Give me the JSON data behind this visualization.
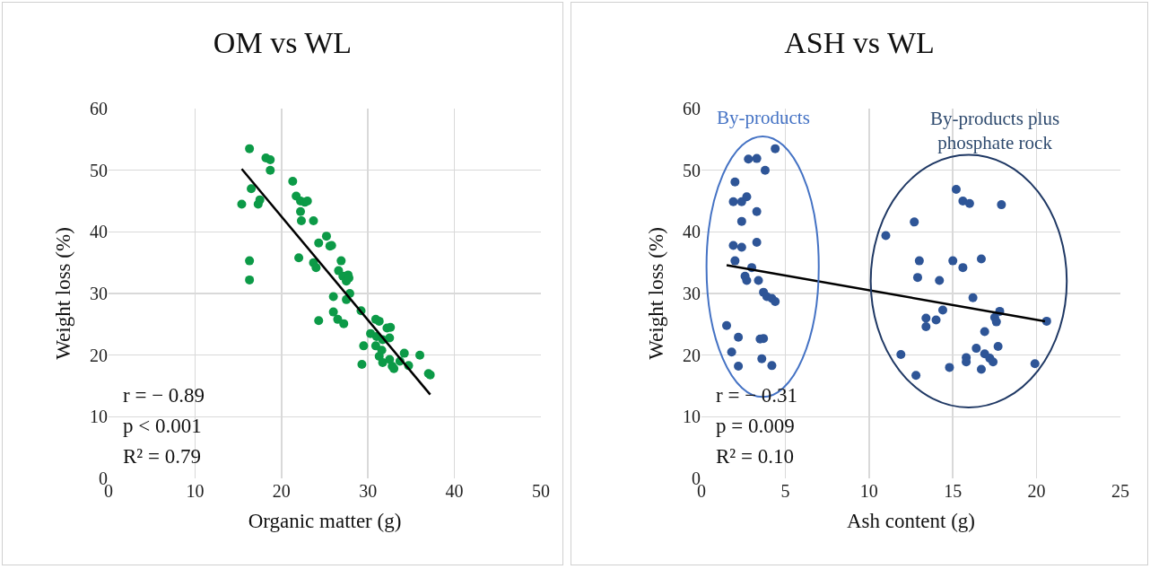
{
  "chart_data": [
    {
      "type": "scatter",
      "title": "OM vs WL",
      "xlabel": "Organic matter (g)",
      "ylabel": "Weight loss (%)",
      "xlim": [
        0,
        50
      ],
      "xticks": [
        0,
        10,
        20,
        30,
        40,
        50
      ],
      "ylim": [
        0,
        60
      ],
      "yticks": [
        0,
        10,
        20,
        30,
        40,
        50,
        60
      ],
      "grid": true,
      "marker": "circle",
      "annotations": [
        "r = − 0.89",
        "p < 0.001",
        "R² = 0.79"
      ],
      "series": [
        {
          "color": "#0c9a47",
          "x": [
            15.4,
            16.3,
            16.5,
            16.3,
            16.3,
            17.3,
            17.5,
            18.2,
            18.7,
            18.7,
            21.3,
            21.7,
            22.2,
            22.7,
            23,
            22.2,
            22.3,
            23.7,
            22,
            24.3,
            25.2,
            25.6,
            25.8,
            23.7,
            24,
            24.3,
            26,
            26.9,
            26.6,
            27.1,
            27.5,
            27.7,
            27.8,
            27.9,
            27.5,
            26,
            26.5,
            27.2,
            29.2,
            30.9,
            31.3,
            32.6,
            32.2,
            31,
            31.7,
            32.5,
            29.5,
            30.3,
            29.3,
            31.3,
            31.7,
            32.5,
            32.8,
            33,
            33.7,
            34.7,
            36,
            34.2,
            37,
            37.2,
            31.6,
            30.9
          ],
          "values": [
            44.5,
            53.5,
            47,
            35.3,
            32.2,
            44.5,
            45.2,
            52,
            51.7,
            50,
            48.2,
            45.8,
            45,
            44.8,
            45,
            43.3,
            41.8,
            41.8,
            35.8,
            38.2,
            39.3,
            37.7,
            37.8,
            35,
            34.2,
            25.6,
            29.5,
            35.3,
            33.7,
            32.8,
            32,
            33,
            32.5,
            30,
            29,
            27,
            25.8,
            25.1,
            27.2,
            25.8,
            25.5,
            24.5,
            24.4,
            23,
            22.5,
            22.8,
            21.5,
            23.5,
            18.5,
            19.8,
            18.8,
            19.3,
            18.2,
            17.8,
            19,
            18.3,
            20,
            20.3,
            17,
            16.8,
            20.8,
            21.5
          ]
        },
        {
          "type": "line",
          "marker": "none",
          "color": "#000000",
          "x": [
            15.4,
            37.2
          ],
          "values": [
            50.2,
            13.6
          ]
        }
      ]
    },
    {
      "type": "scatter",
      "title": "ASH vs WL",
      "xlabel": "Ash content (g)",
      "ylabel": "Weight loss (%)",
      "xlim": [
        0,
        25
      ],
      "xticks": [
        0,
        5,
        10,
        15,
        20,
        25
      ],
      "ylim": [
        0,
        60
      ],
      "yticks": [
        0,
        10,
        20,
        30,
        40,
        50,
        60
      ],
      "grid": true,
      "marker": "circle",
      "annotations": [
        "r = − 0.31",
        "p = 0.009",
        "R² = 0.10",
        "By-products",
        "By-products plus phosphate rock"
      ],
      "series": [
        {
          "color": "#2e5597",
          "x": [
            4.4,
            2.8,
            3.3,
            3.8,
            2.0,
            1.9,
            2.4,
            2.7,
            3.3,
            2.4,
            1.9,
            2.4,
            3.3,
            2.0,
            3.0,
            2.6,
            2.7,
            3.4,
            3.7,
            3.9,
            4.2,
            4.4,
            1.5,
            2.2,
            3.5,
            3.7,
            1.8,
            2.2,
            3.6,
            4.2,
            15.2,
            15.6,
            16.0,
            17.9,
            12.7,
            11.0,
            13.0,
            15.0,
            16.7,
            15.6,
            12.9,
            14.2,
            16.2,
            14.4,
            17.8,
            17.5,
            17.6,
            13.4,
            14.0,
            13.4,
            20.6,
            16.9,
            16.4,
            17.7,
            11.9,
            15.8,
            15.8,
            16.9,
            17.2,
            17.4,
            14.8,
            12.8,
            16.7,
            19.9
          ],
          "values": [
            53.5,
            51.8,
            51.9,
            50,
            48.1,
            44.9,
            44.9,
            45.7,
            43.3,
            41.7,
            37.8,
            37.5,
            38.3,
            35.3,
            34.2,
            32.8,
            32.1,
            32.1,
            30.2,
            29.5,
            29.2,
            28.7,
            24.8,
            22.9,
            22.6,
            22.7,
            20.5,
            18.2,
            19.4,
            18.3,
            46.9,
            45,
            44.6,
            44.4,
            41.6,
            39.4,
            35.3,
            35.3,
            35.6,
            34.2,
            32.6,
            32.1,
            29.3,
            27.3,
            27.1,
            26.1,
            25.4,
            26.0,
            25.7,
            24.6,
            25.5,
            23.8,
            21.1,
            21.4,
            20.1,
            19.6,
            18.9,
            20.2,
            19.5,
            18.9,
            18.0,
            16.7,
            17.7,
            18.6
          ]
        },
        {
          "type": "line",
          "marker": "none",
          "color": "#000000",
          "x": [
            1.5,
            20.5
          ],
          "values": [
            34.6,
            25.5
          ]
        }
      ]
    }
  ]
}
